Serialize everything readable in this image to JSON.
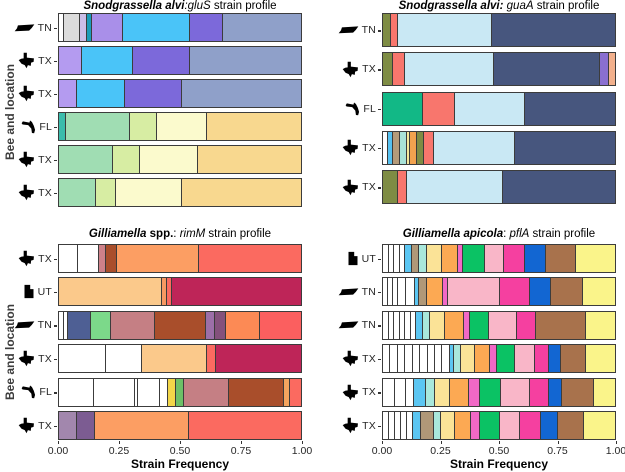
{
  "y_axis_label": "Bee and location",
  "x_axis": {
    "label": "Strain Frequency",
    "ticks": [
      "0.00",
      "0.25",
      "0.50",
      "0.75",
      "1.00"
    ]
  },
  "segment_format": "[color_hex, strain_frequency_fraction]",
  "chart_data": [
    {
      "type": "bar",
      "stacked": true,
      "orientation": "horizontal",
      "title": "Snodgrassella alvi:gluS strain profile",
      "title_parts": [
        {
          "text": "Snodgrassella alvi",
          "style": "bold-italic"
        },
        {
          "text": ":gluS",
          "style": "italic"
        },
        {
          "text": " strain profile",
          "style": "normal"
        }
      ],
      "xlabel": "Strain Frequency",
      "ylabel": "Bee and location",
      "xlim": [
        0,
        1
      ],
      "rows": [
        {
          "label": "TN",
          "icon": "tennessee-icon",
          "segments": [
            [
              "#ffffff",
              0.02
            ],
            [
              "#dcdcdc",
              0.065
            ],
            [
              "#cbbee8",
              0.031
            ],
            [
              "#1b9cb8",
              0.019
            ],
            [
              "#a98fe9",
              0.13
            ],
            [
              "#4ac4f8",
              0.275
            ],
            [
              "#7c69da",
              0.137
            ],
            [
              "#8fa0c9",
              0.323
            ]
          ]
        },
        {
          "label": "TX",
          "icon": "texas-icon",
          "segments": [
            [
              "#b49bf0",
              0.095
            ],
            [
              "#4ac4f8",
              0.21
            ],
            [
              "#7c69da",
              0.235
            ],
            [
              "#8fa0c9",
              0.46
            ]
          ]
        },
        {
          "label": "TX",
          "icon": "texas-icon",
          "segments": [
            [
              "#b49bf0",
              0.075
            ],
            [
              "#4ac4f8",
              0.197
            ],
            [
              "#7c69da",
              0.238
            ],
            [
              "#8fa0c9",
              0.49
            ]
          ]
        },
        {
          "label": "FL",
          "icon": "florida-icon",
          "segments": [
            [
              "#3bbcac",
              0.03
            ],
            [
              "#a0ddb3",
              0.262
            ],
            [
              "#d7eda3",
              0.113
            ],
            [
              "#fbfacd",
              0.205
            ],
            [
              "#f8d88f",
              0.39
            ]
          ]
        },
        {
          "label": "TX",
          "icon": "texas-icon",
          "segments": [
            [
              "#a0ddb3",
              0.224
            ],
            [
              "#d7eda3",
              0.109
            ],
            [
              "#fbfacd",
              0.241
            ],
            [
              "#f8d88f",
              0.426
            ]
          ]
        },
        {
          "label": "TX",
          "icon": "texas-icon",
          "segments": [
            [
              "#a0ddb3",
              0.152
            ],
            [
              "#d7eda3",
              0.083
            ],
            [
              "#fbfacd",
              0.272
            ],
            [
              "#f8d88f",
              0.493
            ]
          ]
        }
      ]
    },
    {
      "type": "bar",
      "stacked": true,
      "orientation": "horizontal",
      "title": "Snodgrassella alvi: guaA strain profile",
      "title_parts": [
        {
          "text": "Snodgrassella alvi:",
          "style": "bold-italic"
        },
        {
          "text": " guaA",
          "style": "italic"
        },
        {
          "text": " strain profile",
          "style": "normal"
        }
      ],
      "xlabel": "Strain Frequency",
      "ylabel": "Bee and location",
      "xlim": [
        0,
        1
      ],
      "rows": [
        {
          "label": "TN",
          "icon": "tennessee-icon",
          "segments": [
            [
              "#7e8c44",
              0.033
            ],
            [
              "#f8766d",
              0.032
            ],
            [
              "#c9e8f4",
              0.405
            ],
            [
              "#47567e",
              0.53
            ]
          ]
        },
        {
          "label": "TX",
          "icon": "texas-icon",
          "segments": [
            [
              "#7e8c44",
              0.042
            ],
            [
              "#f8766d",
              0.052
            ],
            [
              "#c9e8f4",
              0.383
            ],
            [
              "#47567e",
              0.46
            ],
            [
              "#8a6fd0",
              0.039
            ],
            [
              "#f2b08c",
              0.024
            ]
          ]
        },
        {
          "label": "FL",
          "icon": "florida-icon",
          "segments": [
            [
              "#12b886",
              0.173
            ],
            [
              "#f8766d",
              0.137
            ],
            [
              "#c9e8f4",
              0.3
            ],
            [
              "#47567e",
              0.39
            ]
          ]
        },
        {
          "label": "TX",
          "icon": "texas-icon",
          "segments": [
            [
              "#ffffff",
              0.02
            ],
            [
              "#56c1f0",
              0.025
            ],
            [
              "#b59b7a",
              0.027
            ],
            [
              "#a9e2d8",
              0.03
            ],
            [
              "#f5e89c",
              0.016
            ],
            [
              "#f2a24f",
              0.027
            ],
            [
              "#7e8c44",
              0.032
            ],
            [
              "#f8766d",
              0.041
            ],
            [
              "#c9e8f4",
              0.352
            ],
            [
              "#47567e",
              0.43
            ]
          ]
        },
        {
          "label": "TX",
          "icon": "texas-icon",
          "segments": [
            [
              "#7e8c44",
              0.064
            ],
            [
              "#f8766d",
              0.041
            ],
            [
              "#c9e8f4",
              0.411
            ],
            [
              "#47567e",
              0.484
            ]
          ]
        }
      ]
    },
    {
      "type": "bar",
      "stacked": true,
      "orientation": "horizontal",
      "title": "Gilliamella spp.: rimM strain profile",
      "title_parts": [
        {
          "text": "Gilliamella",
          "style": "bold-italic"
        },
        {
          "text": " spp.",
          "style": "bold"
        },
        {
          "text": ": ",
          "style": "normal"
        },
        {
          "text": "rimM",
          "style": "italic"
        },
        {
          "text": " strain profile",
          "style": "normal"
        }
      ],
      "xlabel": "Strain Frequency",
      "ylabel": "Bee and location",
      "xlim": [
        0,
        1
      ],
      "rows": [
        {
          "label": "TX",
          "icon": "texas-icon",
          "segments": [
            [
              "#ffffff",
              0.079
            ],
            [
              "#ffffff",
              0.088
            ],
            [
              "#ce8189",
              0.027
            ],
            [
              "#a94e2b",
              0.045
            ],
            [
              "#fc9e63",
              0.338
            ],
            [
              "#fb6a60",
              0.423
            ]
          ]
        },
        {
          "label": "UT",
          "icon": "utah-icon",
          "segments": [
            [
              "#fbc98b",
              0.427
            ],
            [
              "#f79862",
              0.018
            ],
            [
              "#fb6a60",
              0.023
            ],
            [
              "#be2558",
              0.532
            ]
          ]
        },
        {
          "label": "TN",
          "icon": "tennessee-icon",
          "segments": [
            [
              "#ffffff",
              0.022
            ],
            [
              "#ffffff",
              0.016
            ],
            [
              "#4e5f94",
              0.093
            ],
            [
              "#7cd98a",
              0.085
            ],
            [
              "#c57f84",
              0.181
            ],
            [
              "#a94e2b",
              0.21
            ],
            [
              "#9c6fa8",
              0.037
            ],
            [
              "#84517c",
              0.045
            ],
            [
              "#fc8a55",
              0.141
            ],
            [
              "#fb5f5f",
              0.17
            ]
          ]
        },
        {
          "label": "TX",
          "icon": "texas-icon",
          "segments": [
            [
              "#ffffff",
              0.194
            ],
            [
              "#ffffff",
              0.15
            ],
            [
              "#fbc98b",
              0.266
            ],
            [
              "#fb6a60",
              0.038
            ],
            [
              "#be2558",
              0.352
            ]
          ]
        },
        {
          "label": "FL",
          "icon": "florida-icon",
          "segments": [
            [
              "#ffffff",
              0.144
            ],
            [
              "#ffffff",
              0.169
            ],
            [
              "#ffffff",
              0.012
            ],
            [
              "#ffffff",
              0.094
            ],
            [
              "#ffffff",
              0.03
            ],
            [
              "#f2d649",
              0.036
            ],
            [
              "#6dc067",
              0.033
            ],
            [
              "#c57f84",
              0.183
            ],
            [
              "#a94e2b",
              0.227
            ],
            [
              "#f5a55f",
              0.028
            ],
            [
              "#fb6a60",
              0.044
            ]
          ]
        },
        {
          "label": "TX",
          "icon": "texas-icon",
          "segments": [
            [
              "#a287ad",
              0.075
            ],
            [
              "#7c5c92",
              0.075
            ],
            [
              "#fc9e63",
              0.388
            ],
            [
              "#fb6a60",
              0.462
            ]
          ]
        }
      ]
    },
    {
      "type": "bar",
      "stacked": true,
      "orientation": "horizontal",
      "title": "Gilliamella apicola: pflA strain profile",
      "title_parts": [
        {
          "text": "Gilliamella apicola",
          "style": "bold-italic"
        },
        {
          "text": ": ",
          "style": "normal"
        },
        {
          "text": "pflA",
          "style": "italic"
        },
        {
          "text": " strain profile",
          "style": "normal"
        }
      ],
      "xlabel": "Strain Frequency",
      "ylabel": "Bee and location",
      "xlim": [
        0,
        1
      ],
      "rows": [
        {
          "label": "UT",
          "icon": "utah-icon",
          "segments": [
            [
              "#ffffff",
              0.024
            ],
            [
              "#ffffff",
              0.024
            ],
            [
              "#ffffff",
              0.024
            ],
            [
              "#ffffff",
              0.024
            ],
            [
              "#5bc6f2",
              0.028
            ],
            [
              "#b09878",
              0.033
            ],
            [
              "#a9e8dc",
              0.033
            ],
            [
              "#fbe397",
              0.066
            ],
            [
              "#fca953",
              0.066
            ],
            [
              "#f168c6",
              0.025
            ],
            [
              "#0bc264",
              0.092
            ],
            [
              "#f9b6c8",
              0.085
            ],
            [
              "#f540a0",
              0.089
            ],
            [
              "#1266d2",
              0.091
            ],
            [
              "#a8724c",
              0.127
            ],
            [
              "#faf48a",
              0.169
            ]
          ]
        },
        {
          "label": "TN",
          "icon": "tennessee-icon",
          "segments": [
            [
              "#ffffff",
              0.02
            ],
            [
              "#ffffff",
              0.022
            ],
            [
              "#ffffff",
              0.024
            ],
            [
              "#ffffff",
              0.035
            ],
            [
              "#ffffff",
              0.035
            ],
            [
              "#5bc6f2",
              0.018
            ],
            [
              "#b09878",
              0.038
            ],
            [
              "#fca953",
              0.065
            ],
            [
              "#f168c6",
              0.022
            ],
            [
              "#f9b6c8",
              0.227
            ],
            [
              "#f540a0",
              0.126
            ],
            [
              "#1266d2",
              0.091
            ],
            [
              "#a8724c",
              0.139
            ],
            [
              "#faf48a",
              0.138
            ]
          ]
        },
        {
          "label": "TN",
          "icon": "tennessee-icon",
          "segments": [
            [
              "#ffffff",
              0.024
            ],
            [
              "#ffffff",
              0.024
            ],
            [
              "#ffffff",
              0.024
            ],
            [
              "#ffffff",
              0.024
            ],
            [
              "#ffffff",
              0.024
            ],
            [
              "#ffffff",
              0.023
            ],
            [
              "#5bc6f2",
              0.031
            ],
            [
              "#a9e8dc",
              0.028
            ],
            [
              "#fbe397",
              0.067
            ],
            [
              "#fca953",
              0.081
            ],
            [
              "#f168c6",
              0.024
            ],
            [
              "#0bc264",
              0.084
            ],
            [
              "#f9b6c8",
              0.119
            ],
            [
              "#f540a0",
              0.084
            ],
            [
              "#a8724c",
              0.216
            ],
            [
              "#faf48a",
              0.123
            ]
          ]
        },
        {
          "label": "TX",
          "icon": "texas-icon",
          "segments": [
            [
              "#ffffff",
              0.032
            ],
            [
              "#ffffff",
              0.032
            ],
            [
              "#ffffff",
              0.032
            ],
            [
              "#ffffff",
              0.032
            ],
            [
              "#ffffff",
              0.032
            ],
            [
              "#ffffff",
              0.032
            ],
            [
              "#ffffff",
              0.032
            ],
            [
              "#ffffff",
              0.032
            ],
            [
              "#ffffff",
              0.032
            ],
            [
              "#5bc6f2",
              0.02
            ],
            [
              "#a9e8dc",
              0.028
            ],
            [
              "#fbe397",
              0.06
            ],
            [
              "#fca953",
              0.066
            ],
            [
              "#f168c6",
              0.028
            ],
            [
              "#0bc264",
              0.081
            ],
            [
              "#f9b6c8",
              0.084
            ],
            [
              "#f540a0",
              0.063
            ],
            [
              "#1266d2",
              0.049
            ],
            [
              "#a8724c",
              0.109
            ],
            [
              "#faf48a",
              0.124
            ]
          ]
        },
        {
          "label": "TX",
          "icon": "texas-icon",
          "segments": [
            [
              "#ffffff",
              0.052
            ],
            [
              "#ffffff",
              0.047
            ],
            [
              "#ffffff",
              0.033
            ],
            [
              "#5bc6f2",
              0.052
            ],
            [
              "#a9e8dc",
              0.042
            ],
            [
              "#fbe397",
              0.064
            ],
            [
              "#fca953",
              0.082
            ],
            [
              "#f168c6",
              0.045
            ],
            [
              "#0bc264",
              0.092
            ],
            [
              "#f9b6c8",
              0.123
            ],
            [
              "#f540a0",
              0.082
            ],
            [
              "#1266d2",
              0.059
            ],
            [
              "#a8724c",
              0.136
            ],
            [
              "#faf48a",
              0.091
            ]
          ]
        },
        {
          "label": "TX",
          "icon": "texas-icon",
          "segments": [
            [
              "#ffffff",
              0.026
            ],
            [
              "#ffffff",
              0.026
            ],
            [
              "#ffffff",
              0.026
            ],
            [
              "#ffffff",
              0.026
            ],
            [
              "#ffffff",
              0.026
            ],
            [
              "#5bc6f2",
              0.032
            ],
            [
              "#b09878",
              0.06
            ],
            [
              "#a9e8dc",
              0.028
            ],
            [
              "#fbe397",
              0.061
            ],
            [
              "#fca953",
              0.07
            ],
            [
              "#f168c6",
              0.036
            ],
            [
              "#0bc264",
              0.086
            ],
            [
              "#f9b6c8",
              0.086
            ],
            [
              "#f540a0",
              0.092
            ],
            [
              "#1266d2",
              0.075
            ],
            [
              "#a8724c",
              0.109
            ],
            [
              "#faf48a",
              0.135
            ]
          ]
        }
      ]
    }
  ]
}
